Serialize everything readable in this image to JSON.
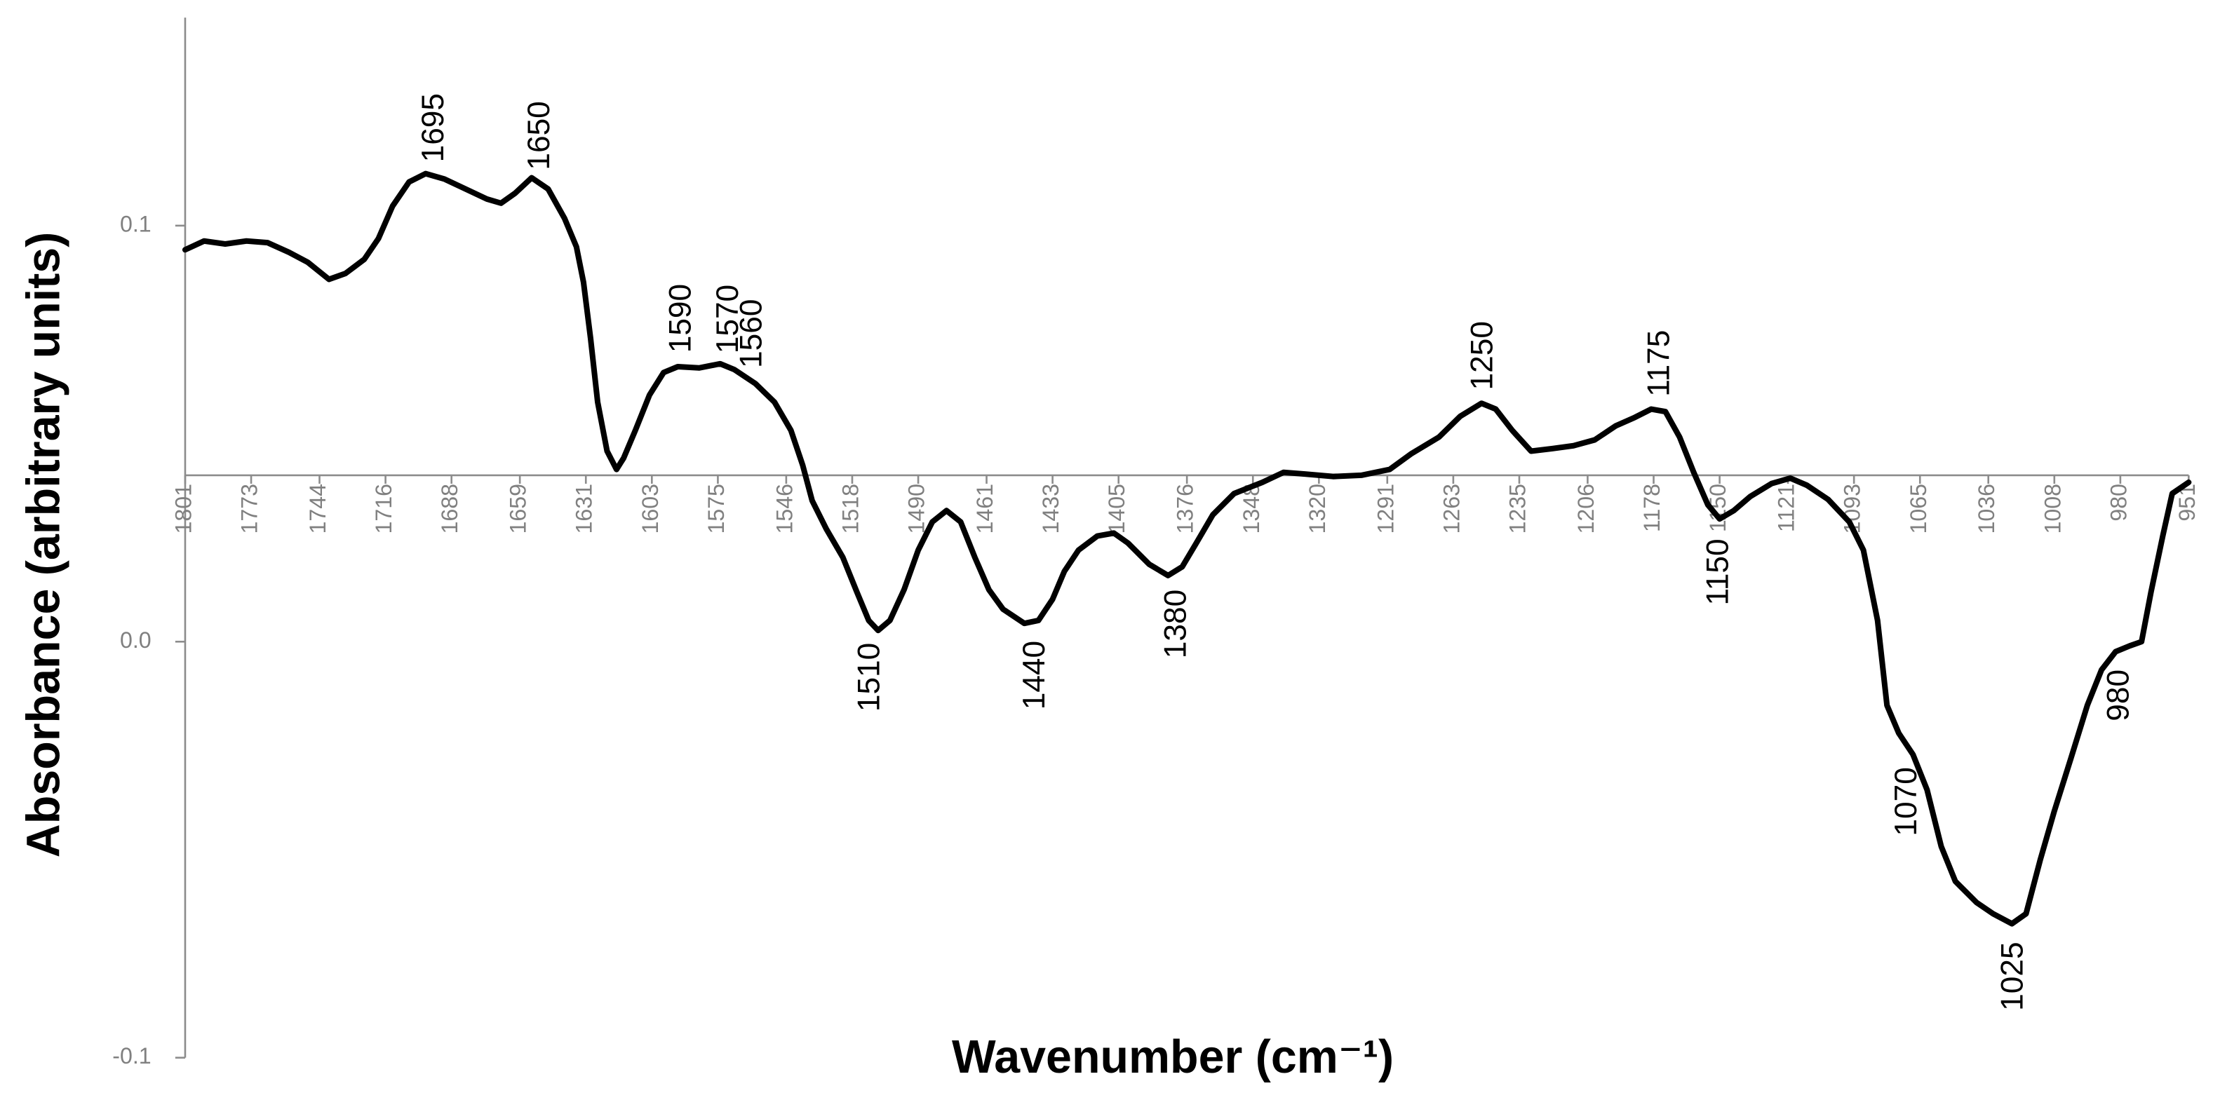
{
  "chart_data": {
    "type": "line",
    "xlabel": "Wavenumber (cm⁻¹)",
    "ylabel": "Absorbance (arbitrary units)",
    "color": "#000000",
    "xlim": [
      1801,
      951
    ],
    "ylim": [
      -0.1,
      0.15
    ],
    "xaxis_crosses": 0.04,
    "xticks": [
      1801,
      1773,
      1744,
      1716,
      1688,
      1659,
      1631,
      1603,
      1575,
      1546,
      1518,
      1490,
      1461,
      1433,
      1405,
      1376,
      1348,
      1320,
      1291,
      1263,
      1235,
      1206,
      1178,
      1150,
      1121,
      1093,
      1065,
      1036,
      1008,
      980,
      951
    ],
    "yticks": [
      -0.1,
      {
        "value": 0,
        "label": "0.0"
      },
      0.1
    ],
    "x": [
      1801,
      1793,
      1784,
      1775,
      1766,
      1757,
      1749,
      1740,
      1733,
      1725,
      1719,
      1713,
      1706,
      1699,
      1691,
      1682,
      1673,
      1667,
      1661,
      1654,
      1647,
      1640,
      1635,
      1632,
      1629,
      1626,
      1622,
      1618,
      1615,
      1610,
      1604,
      1598,
      1592,
      1583,
      1574,
      1568,
      1559,
      1551,
      1544,
      1539,
      1535,
      1529,
      1522,
      1516,
      1511,
      1507,
      1502,
      1496,
      1490,
      1484,
      1478,
      1472,
      1466,
      1460,
      1454,
      1445,
      1439,
      1433,
      1428,
      1422,
      1414,
      1407,
      1401,
      1392,
      1384,
      1378,
      1372,
      1365,
      1356,
      1344,
      1335,
      1326,
      1314,
      1302,
      1290,
      1281,
      1269,
      1260,
      1251,
      1245,
      1238,
      1230,
      1221,
      1212,
      1203,
      1194,
      1186,
      1179,
      1173,
      1167,
      1161,
      1155,
      1150,
      1144,
      1137,
      1128,
      1120,
      1113,
      1104,
      1095,
      1089,
      1083,
      1079,
      1074,
      1068,
      1062,
      1056,
      1050,
      1041,
      1034,
      1026,
      1020,
      1014,
      1008,
      1001,
      994,
      988,
      982,
      976,
      971,
      967,
      962,
      958,
      951
    ],
    "values": [
      0.0942,
      0.0963,
      0.0956,
      0.0963,
      0.0959,
      0.0936,
      0.0912,
      0.0871,
      0.0885,
      0.0919,
      0.0969,
      0.1047,
      0.1105,
      0.1125,
      0.1112,
      0.1088,
      0.1064,
      0.1054,
      0.1078,
      0.1115,
      0.1088,
      0.1017,
      0.0949,
      0.0864,
      0.0729,
      0.0576,
      0.0458,
      0.0414,
      0.0441,
      0.0508,
      0.0593,
      0.0647,
      0.0661,
      0.0658,
      0.0668,
      0.0654,
      0.062,
      0.0576,
      0.0508,
      0.0424,
      0.0339,
      0.0271,
      0.0203,
      0.0119,
      0.0051,
      0.0027,
      0.0051,
      0.0125,
      0.022,
      0.0288,
      0.0315,
      0.0288,
      0.0203,
      0.0125,
      0.0078,
      0.0044,
      0.0051,
      0.0102,
      0.0169,
      0.022,
      0.0254,
      0.0261,
      0.0237,
      0.0186,
      0.0159,
      0.018,
      0.0237,
      0.0305,
      0.0356,
      0.0383,
      0.0407,
      0.0403,
      0.0397,
      0.04,
      0.0414,
      0.0451,
      0.0492,
      0.0542,
      0.0573,
      0.0559,
      0.0508,
      0.0458,
      0.0464,
      0.0471,
      0.0485,
      0.0519,
      0.0539,
      0.0559,
      0.0553,
      0.0492,
      0.0407,
      0.0329,
      0.0295,
      0.0315,
      0.0349,
      0.038,
      0.0393,
      0.0376,
      0.0342,
      0.0288,
      0.022,
      0.0051,
      -0.0153,
      -0.022,
      -0.0271,
      -0.0356,
      -0.0492,
      -0.0576,
      -0.0627,
      -0.0654,
      -0.0678,
      -0.0654,
      -0.0525,
      -0.0407,
      -0.0281,
      -0.0153,
      -0.0068,
      -0.0024,
      -0.001,
      0.0,
      0.0119,
      0.0254,
      0.0356,
      0.0383
    ],
    "annotations": [
      {
        "x": 1695,
        "position": "above"
      },
      {
        "x": 1650,
        "position": "above"
      },
      {
        "x": 1590,
        "position": "above"
      },
      {
        "x": 1570,
        "position": "above"
      },
      {
        "x": 1560,
        "position": "above"
      },
      {
        "x": 1250,
        "position": "above"
      },
      {
        "x": 1175,
        "position": "above"
      },
      {
        "x": 1510,
        "position": "below"
      },
      {
        "x": 1440,
        "position": "below"
      },
      {
        "x": 1380,
        "position": "below"
      },
      {
        "x": 1150,
        "position": "below"
      },
      {
        "x": 1070,
        "position": "below"
      },
      {
        "x": 1025,
        "position": "below"
      },
      {
        "x": 980,
        "position": "below"
      }
    ]
  }
}
